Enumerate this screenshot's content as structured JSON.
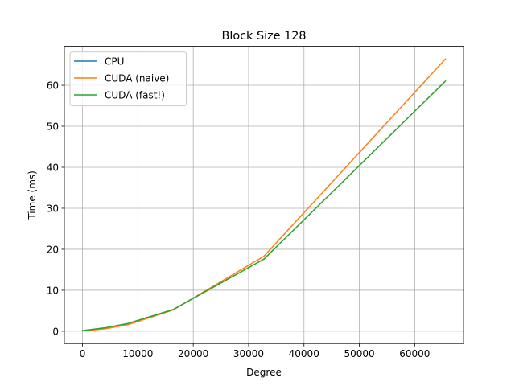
{
  "chart_data": {
    "type": "line",
    "title": "Block Size 128",
    "xlabel": "Degree",
    "ylabel": "Time (ms)",
    "xlim": [
      -3276.8,
      68812.8
    ],
    "ylim": [
      -3.0,
      69.5
    ],
    "xticks": [
      0,
      10000,
      20000,
      30000,
      40000,
      50000,
      60000
    ],
    "yticks": [
      0,
      10,
      20,
      30,
      40,
      50,
      60
    ],
    "grid": true,
    "legend_position": "upper left",
    "series": [
      {
        "name": "CPU",
        "color": "#1f77b4",
        "x": [
          0
        ],
        "y": [
          0.15
        ]
      },
      {
        "name": "CUDA (naive)",
        "color": "#ff7f0e",
        "x": [
          0,
          4096,
          8192,
          16384,
          32768,
          65536
        ],
        "y": [
          0.1,
          0.6,
          1.6,
          5.2,
          18.3,
          66.4
        ]
      },
      {
        "name": "CUDA (fast!)",
        "color": "#2ca02c",
        "x": [
          0,
          4096,
          8192,
          16384,
          32768,
          65536
        ],
        "y": [
          0.15,
          0.85,
          1.9,
          5.3,
          17.6,
          61.0
        ]
      }
    ]
  }
}
